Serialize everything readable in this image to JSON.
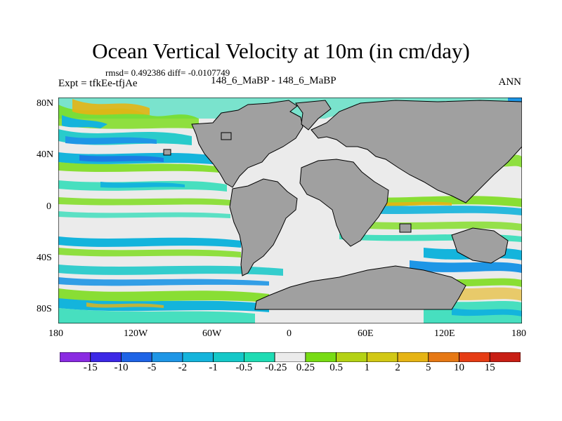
{
  "title": "Ocean Vertical Velocity at 10m (in cm/day)",
  "stats": {
    "rmsd_label": "rmsd= 0.492386",
    "diff_label": "diff= -0.0107749"
  },
  "experiment": "Expt = tfkEe-tfjAe",
  "case_label": "148_6_MaBP - 148_6_MaBP",
  "season": "ANN",
  "map": {
    "lon_ticks": [
      "180",
      "120W",
      "60W",
      "0",
      "60E",
      "120E",
      "180"
    ],
    "lat_ticks": [
      "80N",
      "40N",
      "0",
      "40S",
      "80S"
    ],
    "land_color": "#a0a0a0",
    "ocean_neutral_color": "#ebebeb"
  },
  "colorbar": {
    "labels": [
      "-15",
      "-10",
      "-5",
      "-2",
      "-1",
      "-0.5",
      "-0.25",
      "0.25",
      "0.5",
      "1",
      "2",
      "5",
      "10",
      "15"
    ],
    "colors": [
      "#8a2be2",
      "#3c28e6",
      "#1e64e6",
      "#1e96e6",
      "#14b4dc",
      "#14c8c8",
      "#1edcb4",
      "#ebebeb",
      "#78dc14",
      "#b4d214",
      "#d2c814",
      "#e6b414",
      "#e67814",
      "#e63c14",
      "#c81e14"
    ]
  }
}
